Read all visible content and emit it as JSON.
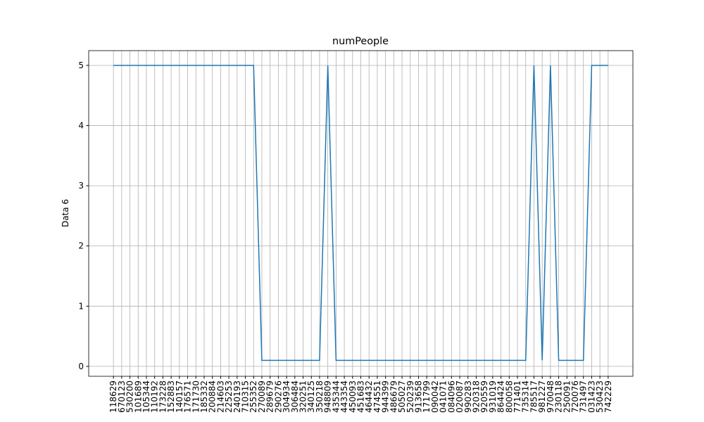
{
  "chart_data": {
    "type": "line",
    "title": "numPeople",
    "y_label": "Data 6",
    "categories": [
      "118629",
      "670123",
      "530200",
      "101689",
      "105344",
      "110192",
      "173228",
      "152883",
      "140157",
      "176571",
      "171730",
      "185332",
      "200884",
      "214603",
      "225253",
      "240193",
      "710315",
      "255352",
      "270089",
      "289679",
      "290276",
      "304934",
      "306484",
      "320251",
      "340125",
      "350218",
      "948809",
      "435344",
      "443354",
      "450093",
      "451683",
      "464432",
      "474551",
      "944399",
      "486679",
      "505027",
      "520239",
      "913658",
      "171799",
      "090042",
      "041071",
      "084096",
      "020087",
      "990283",
      "920318",
      "920559",
      "931019",
      "864424",
      "800058",
      "771401",
      "735314",
      "785517",
      "981227",
      "970048",
      "230118",
      "250091",
      "720076",
      "731497",
      "031423",
      "530423",
      "742229"
    ],
    "series": [
      {
        "name": "numPeople",
        "color": "#1f77b4",
        "values": [
          5,
          5,
          5,
          5,
          5,
          5,
          5,
          5,
          5,
          5,
          5,
          5,
          5,
          5,
          5,
          5,
          5,
          5,
          0.1,
          0.1,
          0.1,
          0.1,
          0.1,
          0.1,
          0.1,
          0.1,
          5,
          0.1,
          0.1,
          0.1,
          0.1,
          0.1,
          0.1,
          0.1,
          0.1,
          0.1,
          0.1,
          0.1,
          0.1,
          0.1,
          0.1,
          0.1,
          0.1,
          0.1,
          0.1,
          0.1,
          0.1,
          0.1,
          0.1,
          0.1,
          0.1,
          5,
          0.1,
          5,
          0.1,
          0.1,
          0.1,
          0.1,
          5,
          5,
          5
        ]
      }
    ],
    "xlim": [
      -3,
      63
    ],
    "ylim": [
      -0.165,
      5.245
    ],
    "yticks": [
      0,
      1,
      2,
      3,
      4,
      5
    ],
    "grid": true
  }
}
